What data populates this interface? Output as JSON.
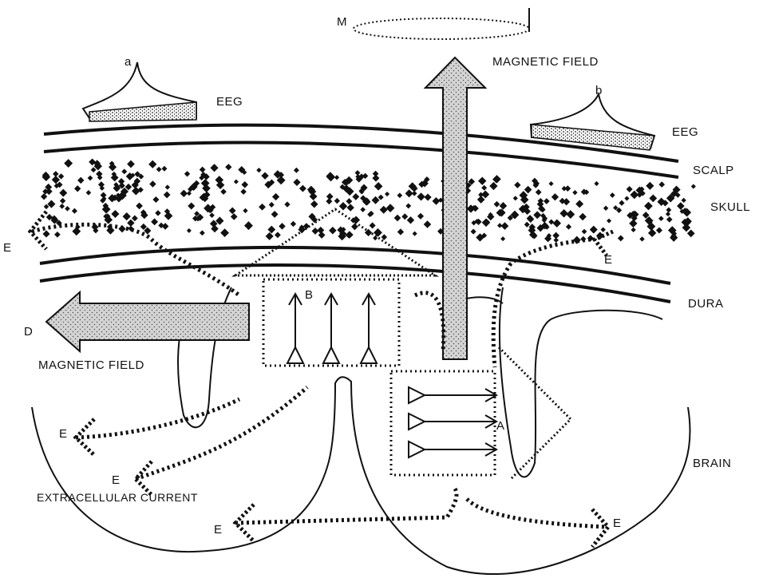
{
  "labels": {
    "m": "M",
    "magnetic_field_top": "MAGNETIC FIELD",
    "a": "a",
    "b": "b",
    "eeg_left": "EEG",
    "eeg_right": "EEG",
    "scalp": "SCALP",
    "skull": "SKULL",
    "dura": "DURA",
    "e_left_top": "E",
    "e_right_top": "E",
    "d": "D",
    "b_upper": "B",
    "a_upper": "A",
    "magnetic_field_left": "MAGNETIC FIELD",
    "brain": "BRAIN",
    "e_left_mid": "E",
    "e_left_low": "E",
    "extracellular_current": "EXTRACELLULAR CURRENT",
    "e_bottom_left": "E",
    "e_bottom_right": "E"
  },
  "colors": {
    "ink": "#111111",
    "arrow_fill": "#cfcfcf",
    "background": "#ffffff"
  }
}
